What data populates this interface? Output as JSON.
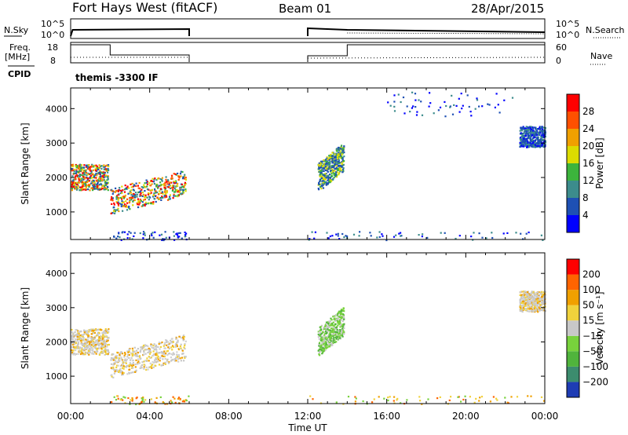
{
  "header": {
    "title": "Fort Hays West (fitACF)",
    "beam": "Beam 01",
    "date": "28/Apr/2015"
  },
  "control": {
    "nsky_label": "N.Sky",
    "nsky_ticks": [
      "10^5",
      "10^0"
    ],
    "nsearch_label": "N.Search",
    "nsearch_ticks": [
      "10^5",
      "10^0"
    ],
    "freq_label_1": "Freq.",
    "freq_label_2": "[MHz]",
    "freq_ticks": [
      "18",
      "8"
    ],
    "nave_label": "Nave",
    "nave_ticks": [
      "60",
      "0"
    ],
    "cpid_label": "CPID",
    "cpid_text": "themis -3300 IF"
  },
  "chart_data": [
    {
      "type": "heatmap",
      "name": "power",
      "ylabel": "Slant Range [km]",
      "xlabel": "",
      "xlim": [
        0,
        24
      ],
      "ylim": [
        200,
        4600
      ],
      "yticks": [
        "1000",
        "2000",
        "3000",
        "4000"
      ],
      "colorbar_label": "Power [dB]",
      "colorbar_ticks": [
        "28",
        "24",
        "20",
        "16",
        "12",
        "8",
        "4"
      ],
      "colorbar_colors": [
        "#0000ff",
        "#1e50b4",
        "#3c8c8c",
        "#3cb43c",
        "#dcdc00",
        "#f0a000",
        "#ff5000",
        "#ff0000"
      ],
      "regions": [
        {
          "t0": 0.0,
          "t1": 1.9,
          "r0": 1650,
          "r1": 2400,
          "level": "high"
        },
        {
          "t0": 2.0,
          "t1": 5.8,
          "r0": 950,
          "r1": 2300,
          "level": "high",
          "slope": true
        },
        {
          "t0": 12.5,
          "t1": 13.8,
          "r0": 1600,
          "r1": 3100,
          "level": "mid",
          "slope": true
        },
        {
          "t0": 22.7,
          "t1": 24.0,
          "r0": 2900,
          "r1": 3500,
          "level": "low"
        },
        {
          "t0": 16.0,
          "t1": 22.5,
          "r0": 3800,
          "r1": 4500,
          "level": "low",
          "sparse": true
        },
        {
          "t0": 2.0,
          "t1": 6.0,
          "r0": 200,
          "r1": 450,
          "level": "low",
          "sparse": true
        },
        {
          "t0": 12.0,
          "t1": 24.0,
          "r0": 200,
          "r1": 450,
          "level": "low",
          "sparse": true
        }
      ]
    },
    {
      "type": "heatmap",
      "name": "velocity",
      "ylabel": "Slant Range [km]",
      "xlabel": "Time UT",
      "xlim": [
        0,
        24
      ],
      "ylim": [
        200,
        4600
      ],
      "yticks": [
        "1000",
        "2000",
        "3000",
        "4000"
      ],
      "xticks": [
        "00:00",
        "04:00",
        "08:00",
        "12:00",
        "16:00",
        "20:00",
        "00:00"
      ],
      "colorbar_label": "Velocity [m s⁻¹]",
      "colorbar_ticks": [
        "200",
        "100",
        "50",
        "15",
        "−15",
        "−50",
        "−100",
        "−200"
      ],
      "colorbar_colors": [
        "#1e3cb4",
        "#3c8c6e",
        "#50b43c",
        "#78d23c",
        "#c8c8c8",
        "#f0d23c",
        "#f0a000",
        "#ff6400",
        "#ff0000"
      ],
      "regions": [
        {
          "t0": 0.0,
          "t1": 1.9,
          "r0": 1650,
          "r1": 2400,
          "level": "gray"
        },
        {
          "t0": 2.0,
          "t1": 5.8,
          "r0": 950,
          "r1": 2300,
          "level": "gray",
          "slope": true
        },
        {
          "t0": 12.5,
          "t1": 13.8,
          "r0": 1600,
          "r1": 3100,
          "level": "green",
          "slope": true
        },
        {
          "t0": 22.7,
          "t1": 24.0,
          "r0": 2900,
          "r1": 3500,
          "level": "gray"
        },
        {
          "t0": 2.0,
          "t1": 6.0,
          "r0": 200,
          "r1": 450,
          "level": "orange",
          "sparse": true
        },
        {
          "t0": 12.0,
          "t1": 24.0,
          "r0": 200,
          "r1": 450,
          "level": "orange",
          "sparse": true
        }
      ]
    }
  ]
}
